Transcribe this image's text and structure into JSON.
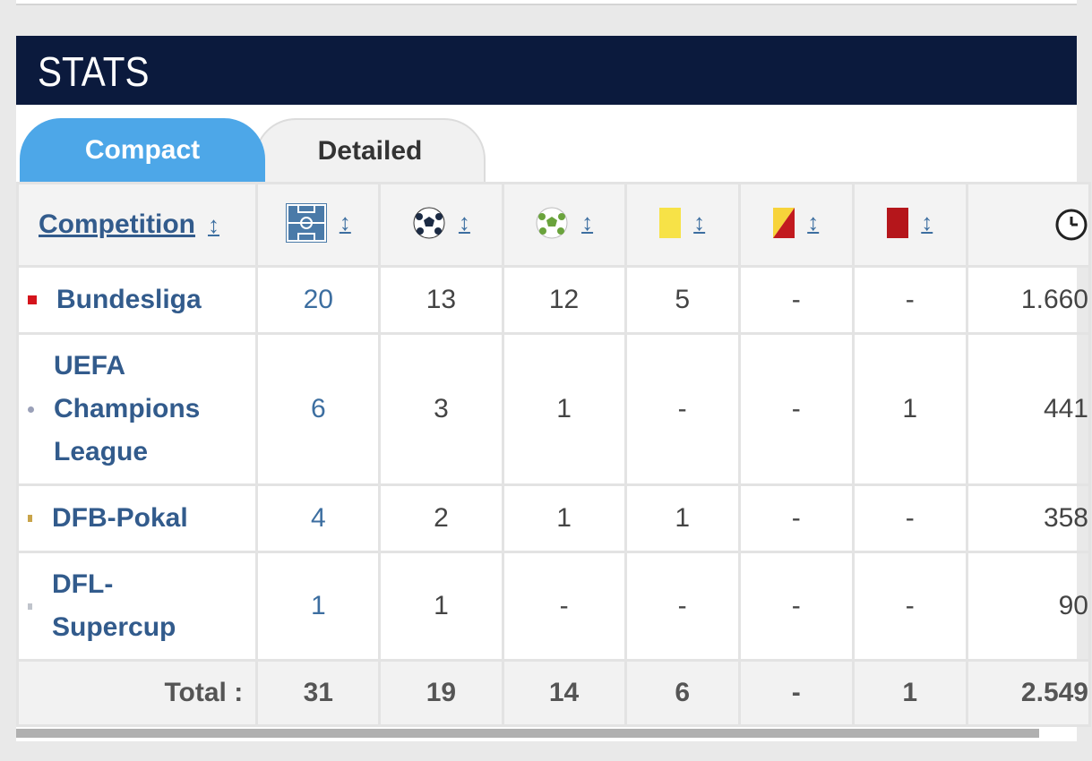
{
  "header": {
    "title": "STATS"
  },
  "tabs": [
    {
      "label": "Compact",
      "active": true
    },
    {
      "label": "Detailed",
      "active": false
    }
  ],
  "table": {
    "columns": {
      "competition": "Competition",
      "sort_glyph": "↕",
      "icons": [
        "pitch-icon",
        "football-icon",
        "assist-ball-icon",
        "yellow-card-icon",
        "yellow-red-card-icon",
        "red-card-icon",
        "clock-icon"
      ]
    },
    "rows": [
      {
        "competition": "Bundesliga",
        "apps": "20",
        "goals": "13",
        "assists": "12",
        "yellow": "5",
        "yellow_red": "-",
        "red": "-",
        "minutes": "1.660"
      },
      {
        "competition": "UEFA Champions League",
        "apps": "6",
        "goals": "3",
        "assists": "1",
        "yellow": "-",
        "yellow_red": "-",
        "red": "1",
        "minutes": "441"
      },
      {
        "competition": "DFB-Pokal",
        "apps": "4",
        "goals": "2",
        "assists": "1",
        "yellow": "1",
        "yellow_red": "-",
        "red": "-",
        "minutes": "358"
      },
      {
        "competition": "DFL-Supercup",
        "apps": "1",
        "goals": "1",
        "assists": "-",
        "yellow": "-",
        "yellow_red": "-",
        "red": "-",
        "minutes": "90"
      }
    ],
    "total": {
      "label": "Total :",
      "apps": "31",
      "goals": "19",
      "assists": "14",
      "yellow": "6",
      "yellow_red": "-",
      "red": "1",
      "minutes": "2.549"
    }
  },
  "colors": {
    "header_bg": "#0b1a3d",
    "tab_active": "#4da7e8",
    "link": "#325b8c",
    "yellow_card": "#f7e247",
    "red_card": "#b5161b"
  }
}
